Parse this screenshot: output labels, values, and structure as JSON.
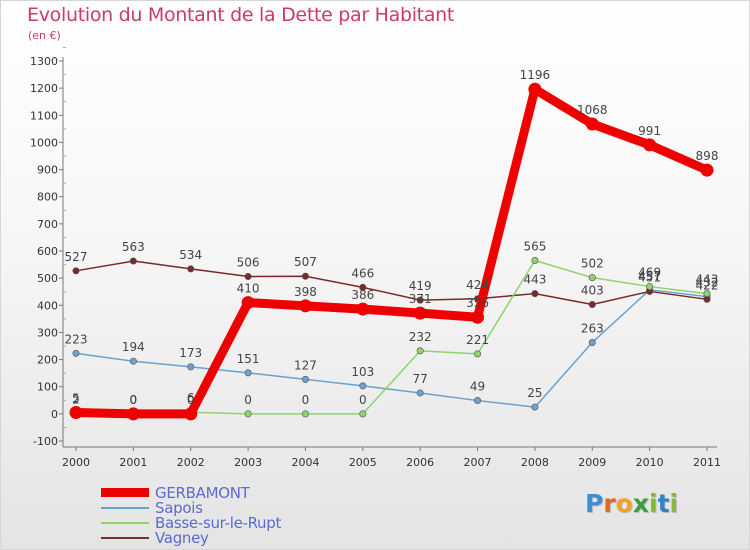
{
  "chart_data": {
    "type": "line",
    "title": "Evolution du Montant de la Dette par Habitant",
    "subtitle": "(en €)",
    "x": [
      "2000",
      "2001",
      "2002",
      "2003",
      "2004",
      "2005",
      "2006",
      "2007",
      "2008",
      "2009",
      "2010",
      "2011"
    ],
    "ylim": [
      -100,
      1300
    ],
    "yticks": [
      -100,
      0,
      100,
      200,
      300,
      400,
      500,
      600,
      700,
      800,
      900,
      1000,
      1100,
      1200,
      1300
    ],
    "grid": false,
    "legend_position": "bottom-left",
    "series": [
      {
        "name": "GERBAMONT",
        "color": "#ee0000",
        "values": [
          5,
          0,
          0,
          410,
          398,
          386,
          371,
          356,
          1196,
          1068,
          991,
          898
        ],
        "labels": [
          "5",
          "0",
          "0",
          "410",
          "398",
          "386",
          "371",
          "356",
          "1196",
          "1068",
          "991",
          "898"
        ]
      },
      {
        "name": "Sapois",
        "color": "#6ba1cf",
        "values": [
          223,
          194,
          173,
          151,
          127,
          103,
          77,
          49,
          25,
          263,
          457,
          432
        ],
        "labels": [
          "223",
          "194",
          "173",
          "151",
          "127",
          "103",
          "77",
          "49",
          "25",
          "263",
          "457",
          "432"
        ]
      },
      {
        "name": "Basse-sur-le-Rupt",
        "color": "#8fd46b",
        "values": [
          2,
          0,
          6,
          0,
          0,
          0,
          232,
          221,
          565,
          502,
          469,
          443
        ],
        "labels": [
          "2",
          "0",
          "6",
          "0",
          "0",
          "0",
          "232",
          "221",
          "565",
          "502",
          "469",
          "443"
        ]
      },
      {
        "name": "Vagney",
        "color": "#7a2a2a",
        "values": [
          527,
          563,
          534,
          506,
          507,
          466,
          419,
          424,
          443,
          403,
          451,
          422
        ],
        "labels": [
          "527",
          "563",
          "534",
          "506",
          "507",
          "466",
          "419",
          "424",
          "443",
          "403",
          "451",
          "422"
        ]
      }
    ]
  },
  "logo": {
    "letters": [
      "P",
      "r",
      "o",
      "x",
      "i",
      "t",
      "i"
    ]
  }
}
